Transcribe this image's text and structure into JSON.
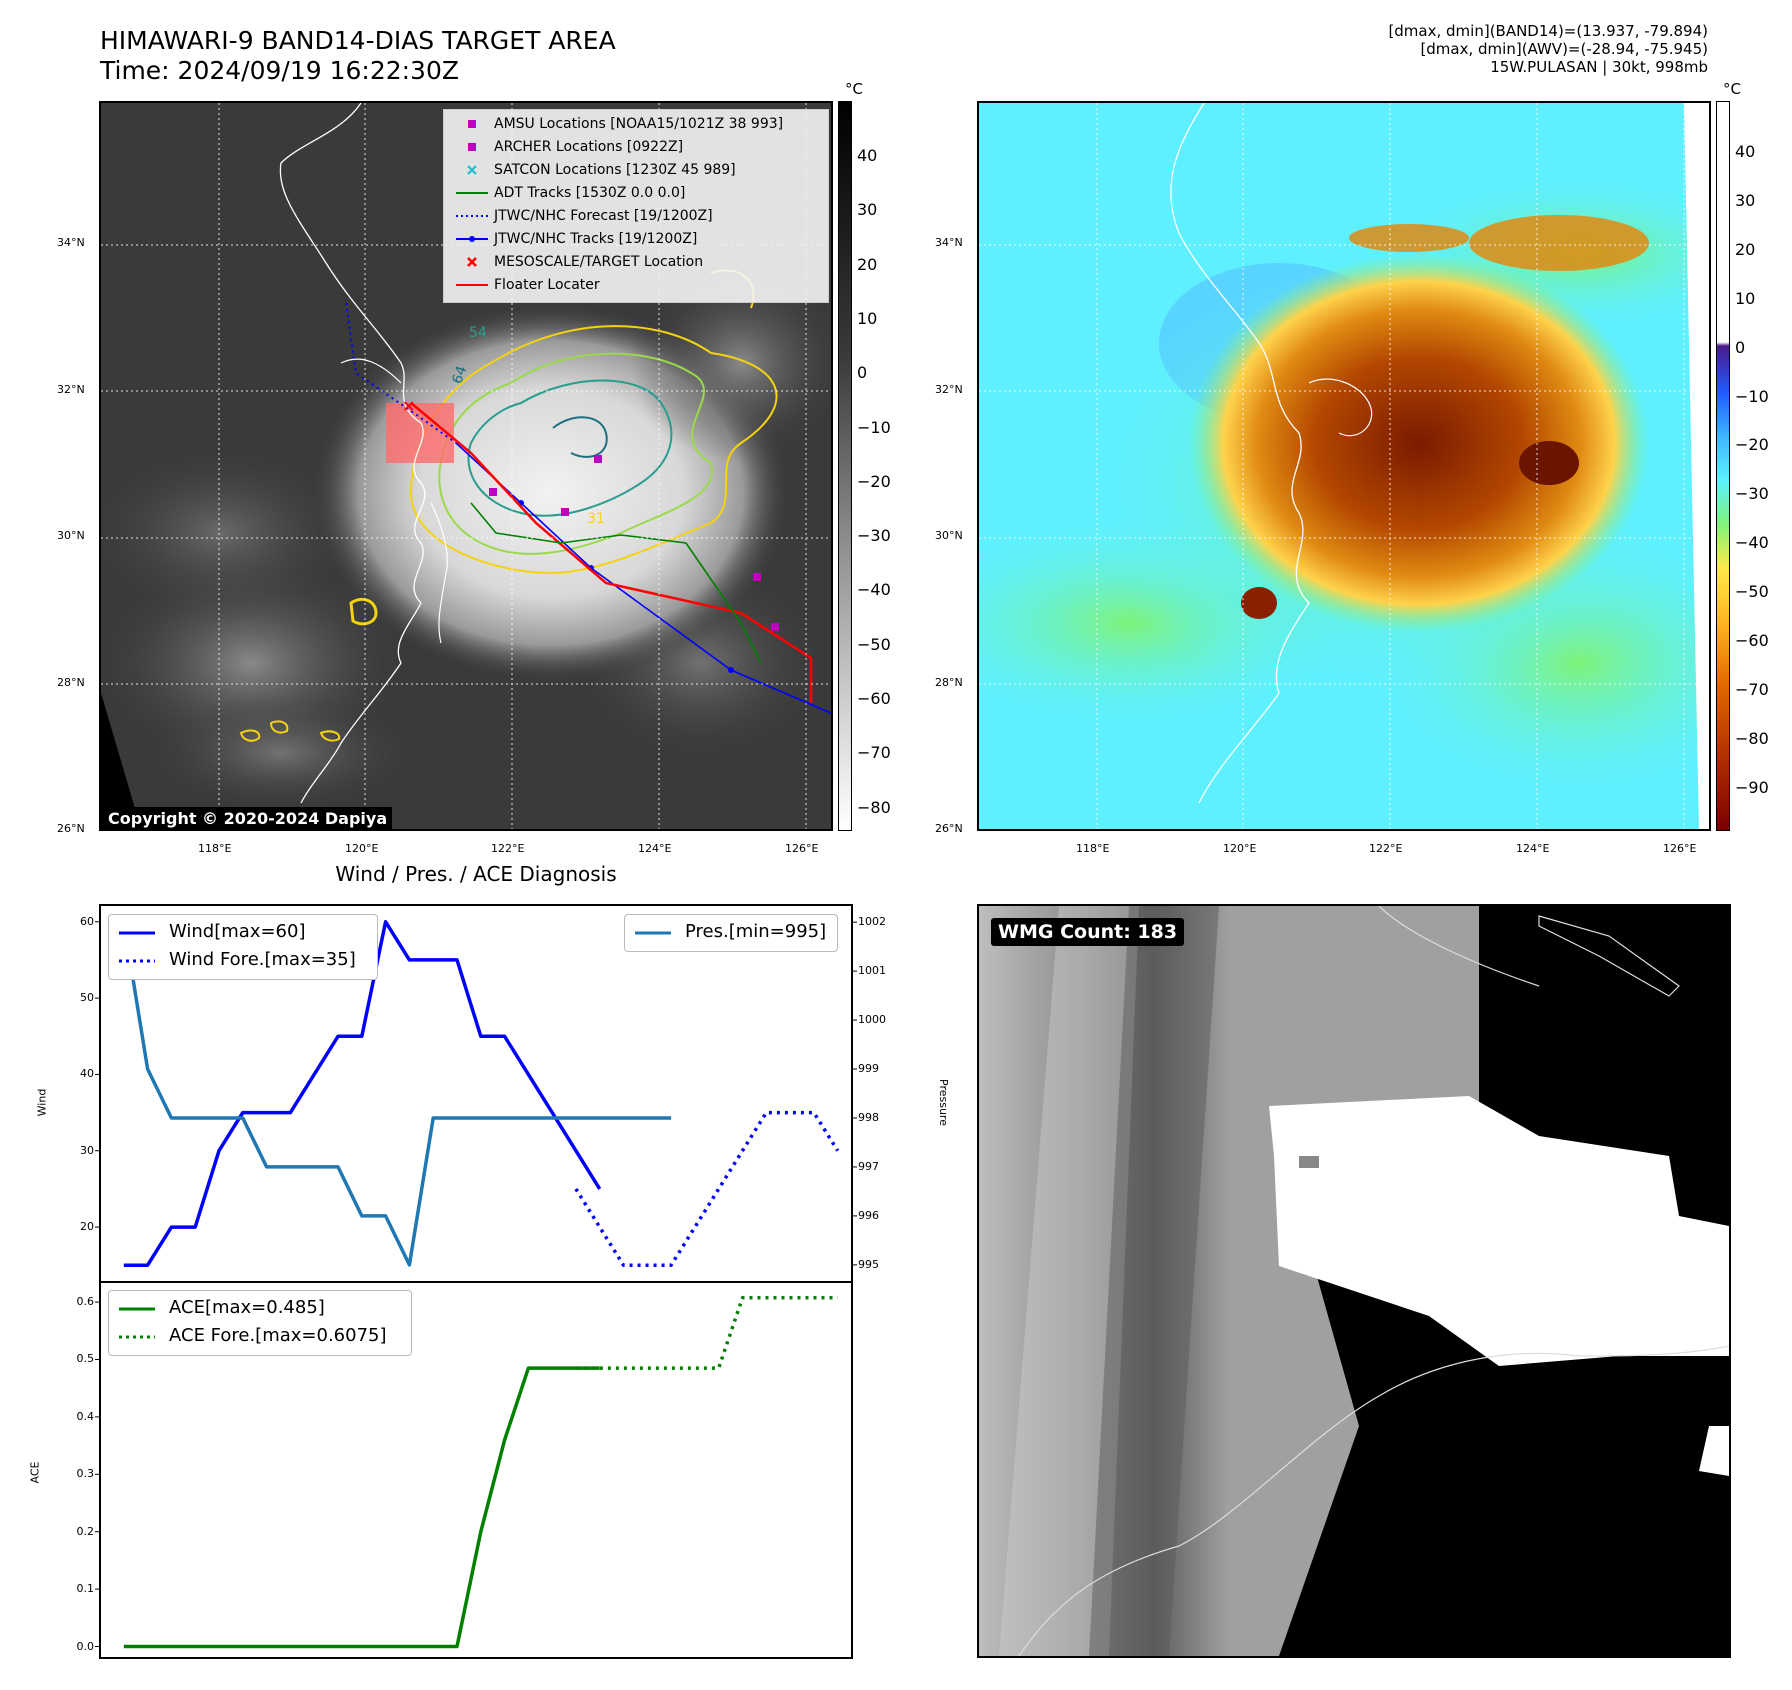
{
  "header": {
    "title_line1": "HIMAWARI-9 BAND14-DIAS TARGET AREA",
    "title_line2": "Time: 2024/09/19 16:22:30Z",
    "info_line1": "[dmax, dmin](BAND14)=(13.937, -79.894)",
    "info_line2": "[dmax, dmin](AWV)=(-28.94, -75.945)",
    "info_line3": "15W.PULASAN | 30kt, 998mb"
  },
  "map_axes": {
    "lat_labels": [
      "34°N",
      "32°N",
      "30°N",
      "28°N",
      "26°N"
    ],
    "lon_labels": [
      "118°E",
      "120°E",
      "122°E",
      "124°E",
      "126°E"
    ]
  },
  "ir_colorbar": {
    "unit": "°C",
    "ticks": [
      "40",
      "30",
      "20",
      "10",
      "0",
      "−10",
      "−20",
      "−30",
      "−40",
      "−50",
      "−60",
      "−70",
      "−80"
    ]
  },
  "wv_colorbar": {
    "unit": "°C",
    "ticks": [
      "40",
      "30",
      "20",
      "10",
      "0",
      "−10",
      "−20",
      "−30",
      "−40",
      "−50",
      "−60",
      "−70",
      "−80",
      "−90"
    ]
  },
  "map_legend": {
    "items": [
      {
        "label": "AMSU Locations [NOAA15/1021Z 38 993]",
        "symbol": "square",
        "color": "#bf00bf"
      },
      {
        "label": "ARCHER Locations [0922Z]",
        "symbol": "square",
        "color": "#bf00bf"
      },
      {
        "label": "SATCON Locations [1230Z 45 989]",
        "symbol": "x",
        "color": "#17becf"
      },
      {
        "label": "ADT Tracks [1530Z 0.0 0.0]",
        "symbol": "line",
        "color": "#008000"
      },
      {
        "label": "JTWC/NHC Forecast [19/1200Z]",
        "symbol": "dotted",
        "color": "#0000ff"
      },
      {
        "label": "JTWC/NHC Tracks [19/1200Z]",
        "symbol": "line-dot",
        "color": "#0000ff"
      },
      {
        "label": "MESOSCALE/TARGET Location",
        "symbol": "x",
        "color": "#ff0000"
      },
      {
        "label": "Floater Locater",
        "symbol": "line",
        "color": "#ff0000"
      }
    ]
  },
  "contour_labels": [
    "54",
    "64",
    "31"
  ],
  "copyright": "Copyright © 2020-2024 Dapiya",
  "wmg": {
    "label": "WMG Count: 183"
  },
  "diagnosis": {
    "title": "Wind / Pres. / ACE Diagnosis"
  },
  "chart_data": [
    {
      "type": "line",
      "title": "Wind / Pres. / ACE Diagnosis",
      "ylabel": "Wind",
      "ylim": [
        12.8,
        62.2
      ],
      "yticks": [
        "20",
        "30",
        "40",
        "50",
        "60"
      ],
      "xlim": [
        -1,
        30.6
      ],
      "y2label": "Pressure",
      "y2lim": [
        994.65,
        1002.35
      ],
      "y2ticks": [
        "995",
        "996",
        "997",
        "998",
        "999",
        "1000",
        "1001",
        "1002"
      ],
      "series": [
        {
          "name": "Wind[max=60]",
          "color": "#0000ff",
          "style": "solid",
          "x": [
            0,
            1,
            2,
            3,
            4,
            5,
            6,
            7,
            8,
            9,
            10,
            11,
            12,
            13,
            14,
            15,
            16,
            17,
            18,
            19,
            20
          ],
          "values": [
            15,
            15,
            20,
            20,
            30,
            35,
            35,
            35,
            40,
            45,
            45,
            60,
            55,
            55,
            55,
            45,
            45,
            40,
            35,
            30,
            25
          ]
        },
        {
          "name": "Wind Fore.[max=35]",
          "color": "#0000ff",
          "style": "dotted",
          "x": [
            19,
            20,
            21,
            22,
            23,
            24,
            25,
            26,
            27,
            28,
            29,
            30
          ],
          "values": [
            25,
            20,
            15,
            15,
            15,
            20,
            25,
            30,
            35,
            35,
            35,
            30
          ]
        },
        {
          "name": "Pres.[min=995]",
          "color": "#1f77b4",
          "style": "solid",
          "axis": "right",
          "x": [
            0,
            1,
            2,
            3,
            4,
            5,
            6,
            7,
            8,
            9,
            10,
            11,
            12,
            13,
            14,
            15,
            16,
            17,
            18,
            19,
            20,
            21,
            22,
            23
          ],
          "values": [
            1002,
            999,
            998,
            998,
            998,
            998,
            997,
            997,
            997,
            997,
            996,
            996,
            995,
            998,
            998,
            998,
            998,
            998,
            998,
            998,
            998,
            998,
            998,
            998
          ]
        }
      ]
    },
    {
      "type": "line",
      "ylabel": "ACE",
      "ylim": [
        -0.02,
        0.635
      ],
      "yticks": [
        "0.0",
        "0.1",
        "0.2",
        "0.3",
        "0.4",
        "0.5",
        "0.6"
      ],
      "xlim": [
        -1,
        30.6
      ],
      "series": [
        {
          "name": "ACE[max=0.485]",
          "color": "#008000",
          "style": "solid",
          "x": [
            0,
            1,
            2,
            3,
            4,
            5,
            6,
            7,
            8,
            9,
            10,
            11,
            12,
            13,
            14,
            15,
            16,
            17,
            18,
            19,
            20
          ],
          "values": [
            0,
            0,
            0,
            0,
            0,
            0,
            0,
            0,
            0,
            0,
            0,
            0,
            0,
            0,
            0,
            0.2,
            0.36,
            0.485,
            0.485,
            0.485,
            0.485
          ]
        },
        {
          "name": "ACE Fore.[max=0.6075]",
          "color": "#008000",
          "style": "dotted",
          "x": [
            19,
            20,
            21,
            22,
            23,
            24,
            25,
            26,
            27,
            28,
            29,
            30
          ],
          "values": [
            0.485,
            0.485,
            0.485,
            0.485,
            0.485,
            0.485,
            0.485,
            0.6075,
            0.6075,
            0.6075,
            0.6075,
            0.6075
          ]
        }
      ]
    }
  ]
}
